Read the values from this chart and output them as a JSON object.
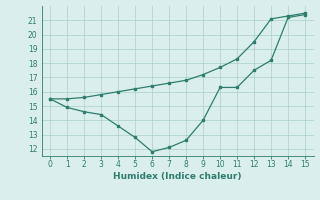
{
  "line1_x": [
    0,
    1,
    2,
    3,
    4,
    5,
    6,
    7,
    8,
    9,
    10,
    11,
    12,
    13,
    14,
    15
  ],
  "line1_y": [
    15.5,
    15.5,
    15.6,
    15.8,
    16.0,
    16.2,
    16.4,
    16.6,
    16.8,
    17.2,
    17.7,
    18.3,
    19.5,
    21.1,
    21.3,
    21.5
  ],
  "line2_x": [
    0,
    1,
    2,
    3,
    4,
    5,
    6,
    7,
    8,
    9,
    10,
    11,
    12,
    13,
    14,
    15
  ],
  "line2_y": [
    15.5,
    14.9,
    14.6,
    14.4,
    13.6,
    12.8,
    11.8,
    12.1,
    12.6,
    14.0,
    16.3,
    16.3,
    17.5,
    18.2,
    21.2,
    21.4
  ],
  "line_color": "#2e7d6e",
  "bg_color": "#daeeed",
  "grid_color": "#aacfcc",
  "xlabel": "Humidex (Indice chaleur)",
  "xlim": [
    -0.5,
    15.5
  ],
  "ylim": [
    11.5,
    22.0
  ],
  "xticks": [
    0,
    1,
    2,
    3,
    4,
    5,
    6,
    7,
    8,
    9,
    10,
    11,
    12,
    13,
    14,
    15
  ],
  "yticks": [
    12,
    13,
    14,
    15,
    16,
    17,
    18,
    19,
    20,
    21
  ],
  "xlabel_fontsize": 6.5,
  "tick_fontsize": 5.5
}
